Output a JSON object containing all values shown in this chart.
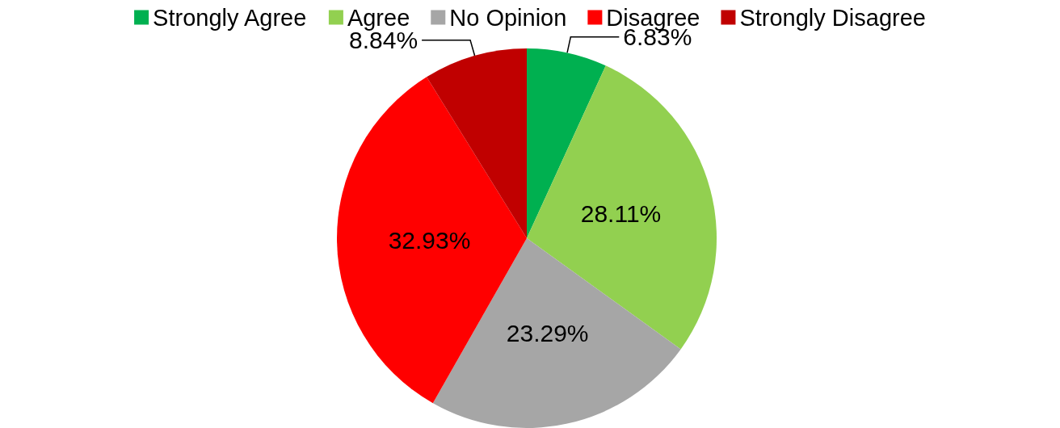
{
  "chart_data": {
    "type": "pie",
    "categories": [
      "Strongly Agree",
      "Agree",
      "No Opinion",
      "Disagree",
      "Strongly Disagree"
    ],
    "values": [
      6.83,
      28.11,
      23.29,
      32.93,
      8.84
    ],
    "colors": [
      "#00b050",
      "#92d050",
      "#a6a6a6",
      "#ff0000",
      "#c00000"
    ],
    "value_labels": [
      "6.83%",
      "28.11%",
      "23.29%",
      "32.93%",
      "8.84%"
    ],
    "legend": "top"
  }
}
